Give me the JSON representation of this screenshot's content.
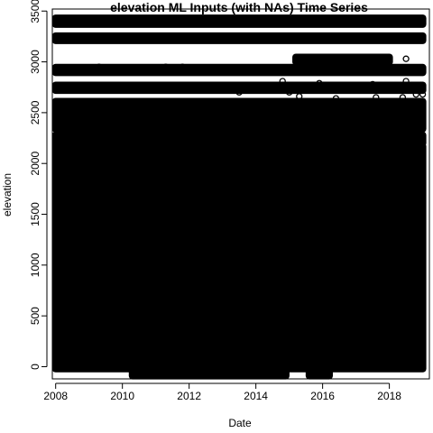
{
  "chart_data": {
    "type": "scatter",
    "title": "elevation ML Inputs (with NAs) Time Series",
    "xlabel": "Date",
    "ylabel": "elevation",
    "xlim": [
      2007.9,
      2019.2
    ],
    "ylim": [
      -120,
      3520
    ],
    "x_ticks": [
      {
        "value": 2008,
        "label": "2008"
      },
      {
        "value": 2010,
        "label": "2010"
      },
      {
        "value": 2012,
        "label": "2012"
      },
      {
        "value": 2014,
        "label": "2014"
      },
      {
        "value": 2016,
        "label": "2016"
      },
      {
        "value": 2018,
        "label": "2018"
      }
    ],
    "y_ticks": [
      {
        "value": 0,
        "label": "0"
      },
      {
        "value": 500,
        "label": "500"
      },
      {
        "value": 1000,
        "label": "1000"
      },
      {
        "value": 1500,
        "label": "1500"
      },
      {
        "value": 2000,
        "label": "2000"
      },
      {
        "value": 2500,
        "label": "2500"
      },
      {
        "value": 3000,
        "label": "3000"
      },
      {
        "value": 3500,
        "label": "3500"
      }
    ],
    "grid": false,
    "point_color": "#000000",
    "dense_bands": [
      {
        "x0": 2008.0,
        "x1": 2019.0,
        "y0": -20,
        "y1": 2170
      },
      {
        "x0": 2010.3,
        "x1": 2014.9,
        "y0": -90,
        "y1": -20
      },
      {
        "x0": 2015.6,
        "x1": 2016.2,
        "y0": -90,
        "y1": -20
      },
      {
        "x0": 2008.0,
        "x1": 2019.0,
        "y0": 2200,
        "y1": 2280
      },
      {
        "x0": 2008.0,
        "x1": 2019.0,
        "y0": 2340,
        "y1": 2610
      },
      {
        "x0": 2008.0,
        "x1": 2019.0,
        "y0": 2720,
        "y1": 2770
      },
      {
        "x0": 2008.0,
        "x1": 2019.0,
        "y0": 2895,
        "y1": 2945
      },
      {
        "x0": 2015.2,
        "x1": 2018.0,
        "y0": 3000,
        "y1": 3045
      },
      {
        "x0": 2008.0,
        "x1": 2019.0,
        "y0": 3210,
        "y1": 3255
      },
      {
        "x0": 2008.0,
        "x1": 2019.0,
        "y0": 3370,
        "y1": 3430
      }
    ],
    "scattered_points": [
      {
        "x": 2013.5,
        "y": 2700
      },
      {
        "x": 2014.8,
        "y": 2810
      },
      {
        "x": 2015.9,
        "y": 2790
      },
      {
        "x": 2017.5,
        "y": 2780
      },
      {
        "x": 2018.5,
        "y": 3030
      },
      {
        "x": 2018.5,
        "y": 2810
      },
      {
        "x": 2018.4,
        "y": 2650
      },
      {
        "x": 2018.8,
        "y": 2680
      },
      {
        "x": 2019.0,
        "y": 2680
      },
      {
        "x": 2016.4,
        "y": 2640
      },
      {
        "x": 2017.6,
        "y": 2650
      },
      {
        "x": 2014.0,
        "y": 2740
      },
      {
        "x": 2015.0,
        "y": 2700
      },
      {
        "x": 2013.2,
        "y": 2200
      },
      {
        "x": 2014.4,
        "y": 2340
      },
      {
        "x": 2016.8,
        "y": 2300
      },
      {
        "x": 2018.2,
        "y": 2320
      },
      {
        "x": 2019.0,
        "y": 2100
      },
      {
        "x": 2018.9,
        "y": 2500
      },
      {
        "x": 2009.3,
        "y": 2950
      },
      {
        "x": 2011.3,
        "y": 2950
      },
      {
        "x": 2011.8,
        "y": 2950
      },
      {
        "x": 2015.3,
        "y": 2660
      },
      {
        "x": 2017.8,
        "y": 2420
      }
    ]
  }
}
